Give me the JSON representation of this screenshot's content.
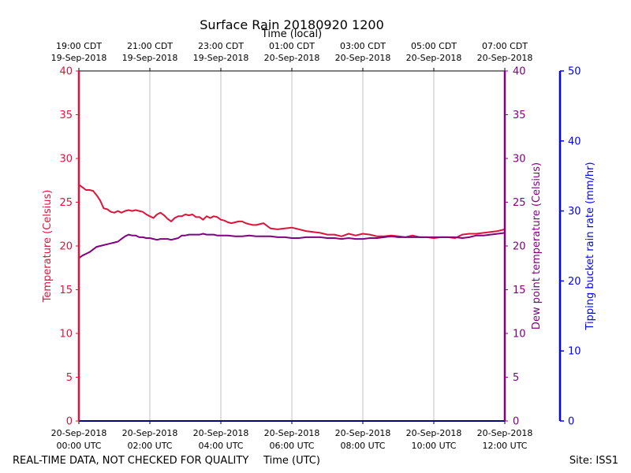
{
  "chart_data": {
    "type": "line",
    "title": "Surface Rain 20180920 1200",
    "top_axis_label": "Time (local)",
    "xlabel": "Time (UTC)",
    "ylabel_left": "Temperature (Celsius)",
    "ylabel_right": "Dew point temperature (Celsius)",
    "ylabel_far_right": "Tipping bucket rain rate (mm/hr)",
    "footer_left": "REAL-TIME DATA, NOT CHECKED FOR QUALITY",
    "footer_right": "Site: ISS1",
    "xlim": [
      0,
      12
    ],
    "ylim_temperature": [
      0,
      40
    ],
    "ylim_dewpoint": [
      0,
      40
    ],
    "ylim_rain": [
      0,
      50
    ],
    "grid": "vertical",
    "x_ticks": [
      {
        "hour": 0,
        "utc_date": "20-Sep-2018",
        "utc_time": "00:00 UTC",
        "local_time": "19:00 CDT",
        "local_date": "19-Sep-2018"
      },
      {
        "hour": 2,
        "utc_date": "20-Sep-2018",
        "utc_time": "02:00 UTC",
        "local_time": "21:00 CDT",
        "local_date": "19-Sep-2018"
      },
      {
        "hour": 4,
        "utc_date": "20-Sep-2018",
        "utc_time": "04:00 UTC",
        "local_time": "23:00 CDT",
        "local_date": "19-Sep-2018"
      },
      {
        "hour": 6,
        "utc_date": "20-Sep-2018",
        "utc_time": "06:00 UTC",
        "local_time": "01:00 CDT",
        "local_date": "20-Sep-2018"
      },
      {
        "hour": 8,
        "utc_date": "20-Sep-2018",
        "utc_time": "08:00 UTC",
        "local_time": "03:00 CDT",
        "local_date": "20-Sep-2018"
      },
      {
        "hour": 10,
        "utc_date": "20-Sep-2018",
        "utc_time": "10:00 UTC",
        "local_time": "05:00 CDT",
        "local_date": "20-Sep-2018"
      },
      {
        "hour": 12,
        "utc_date": "20-Sep-2018",
        "utc_time": "12:00 UTC",
        "local_time": "07:00 CDT",
        "local_date": "20-Sep-2018"
      }
    ],
    "temp_ticks": [
      0,
      5,
      10,
      15,
      20,
      25,
      30,
      35,
      40
    ],
    "dew_ticks": [
      0,
      5,
      10,
      15,
      20,
      25,
      30,
      35,
      40
    ],
    "rain_ticks": [
      0,
      10,
      20,
      30,
      40,
      50
    ],
    "colors": {
      "temperature": "#dc143c",
      "dewpoint": "#800080",
      "rain": "#0000ff",
      "grid": "#b0b0b0"
    },
    "series": [
      {
        "name": "Temperature",
        "axis": "left",
        "x": [
          0,
          0.1,
          0.2,
          0.3,
          0.4,
          0.5,
          0.6,
          0.7,
          0.8,
          0.9,
          1.0,
          1.1,
          1.2,
          1.3,
          1.4,
          1.5,
          1.6,
          1.7,
          1.8,
          1.9,
          2.0,
          2.1,
          2.2,
          2.3,
          2.4,
          2.5,
          2.6,
          2.7,
          2.8,
          2.9,
          3.0,
          3.1,
          3.2,
          3.3,
          3.4,
          3.5,
          3.6,
          3.7,
          3.8,
          3.9,
          4.0,
          4.1,
          4.2,
          4.3,
          4.4,
          4.5,
          4.6,
          4.7,
          4.8,
          4.9,
          5.0,
          5.2,
          5.4,
          5.6,
          5.8,
          6.0,
          6.2,
          6.4,
          6.6,
          6.8,
          7.0,
          7.2,
          7.4,
          7.6,
          7.8,
          8.0,
          8.2,
          8.4,
          8.6,
          8.8,
          9.0,
          9.2,
          9.4,
          9.6,
          9.8,
          10.0,
          10.2,
          10.4,
          10.6,
          10.8,
          11.0,
          11.2,
          11.4,
          11.6,
          11.8,
          12.0
        ],
        "y": [
          27.0,
          26.7,
          26.4,
          26.4,
          26.3,
          25.8,
          25.2,
          24.3,
          24.2,
          23.9,
          23.8,
          24.0,
          23.8,
          24.0,
          24.1,
          24.0,
          24.1,
          24.0,
          23.9,
          23.6,
          23.4,
          23.2,
          23.6,
          23.8,
          23.5,
          23.1,
          22.8,
          23.2,
          23.4,
          23.4,
          23.6,
          23.5,
          23.6,
          23.3,
          23.3,
          23.0,
          23.4,
          23.2,
          23.4,
          23.3,
          23.0,
          22.9,
          22.7,
          22.6,
          22.7,
          22.8,
          22.8,
          22.6,
          22.5,
          22.4,
          22.4,
          22.6,
          22.0,
          21.9,
          22.0,
          22.1,
          21.9,
          21.7,
          21.6,
          21.5,
          21.3,
          21.3,
          21.1,
          21.4,
          21.2,
          21.4,
          21.3,
          21.1,
          21.1,
          21.2,
          21.1,
          21.0,
          21.2,
          21.0,
          21.0,
          20.9,
          21.0,
          21.0,
          20.9,
          21.3,
          21.4,
          21.4,
          21.5,
          21.6,
          21.7,
          21.9
        ]
      },
      {
        "name": "Dew point",
        "axis": "right",
        "x": [
          0,
          0.1,
          0.2,
          0.3,
          0.4,
          0.5,
          0.6,
          0.7,
          0.8,
          0.9,
          1.0,
          1.1,
          1.2,
          1.3,
          1.4,
          1.5,
          1.6,
          1.7,
          1.8,
          1.9,
          2.0,
          2.1,
          2.2,
          2.3,
          2.4,
          2.5,
          2.6,
          2.7,
          2.8,
          2.9,
          3.0,
          3.1,
          3.2,
          3.3,
          3.4,
          3.5,
          3.6,
          3.7,
          3.8,
          3.9,
          4.0,
          4.2,
          4.4,
          4.6,
          4.8,
          5.0,
          5.2,
          5.4,
          5.6,
          5.8,
          6.0,
          6.2,
          6.4,
          6.6,
          6.8,
          7.0,
          7.2,
          7.4,
          7.6,
          7.8,
          8.0,
          8.2,
          8.4,
          8.6,
          8.8,
          9.0,
          9.2,
          9.4,
          9.6,
          9.8,
          10.0,
          10.2,
          10.4,
          10.6,
          10.8,
          11.0,
          11.2,
          11.4,
          11.6,
          11.8,
          12.0
        ],
        "y": [
          18.6,
          18.9,
          19.1,
          19.3,
          19.6,
          19.9,
          20.0,
          20.1,
          20.2,
          20.3,
          20.4,
          20.5,
          20.8,
          21.1,
          21.3,
          21.2,
          21.2,
          21.0,
          21.0,
          20.9,
          20.9,
          20.8,
          20.7,
          20.8,
          20.8,
          20.8,
          20.7,
          20.8,
          20.9,
          21.2,
          21.2,
          21.3,
          21.3,
          21.3,
          21.3,
          21.4,
          21.3,
          21.3,
          21.3,
          21.2,
          21.2,
          21.2,
          21.1,
          21.1,
          21.2,
          21.1,
          21.1,
          21.1,
          21.0,
          21.0,
          20.9,
          20.9,
          21.0,
          21.0,
          21.0,
          20.9,
          20.9,
          20.8,
          20.9,
          20.8,
          20.8,
          20.9,
          20.9,
          21.0,
          21.1,
          21.0,
          21.0,
          21.0,
          21.0,
          21.0,
          21.0,
          21.0,
          21.0,
          21.0,
          20.9,
          21.0,
          21.2,
          21.2,
          21.3,
          21.4,
          21.5
        ]
      },
      {
        "name": "Rain rate",
        "axis": "far_right",
        "x": [
          0,
          12
        ],
        "y": [
          0,
          0
        ]
      }
    ]
  }
}
